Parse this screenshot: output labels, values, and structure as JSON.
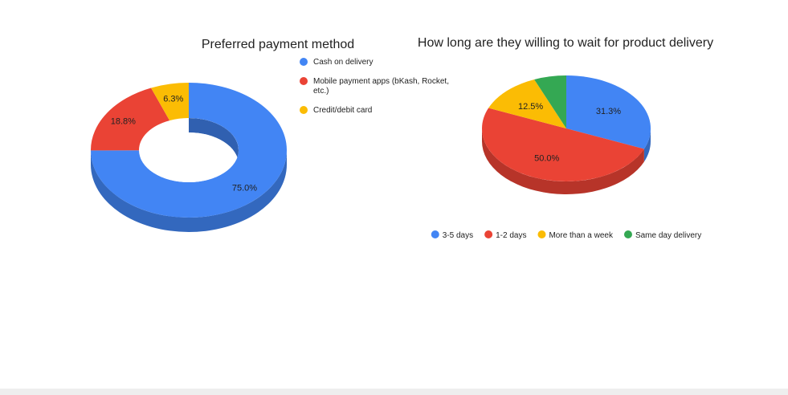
{
  "chart_data": [
    {
      "type": "pie",
      "variant": "donut-3d",
      "title": "Preferred payment method",
      "categories": [
        "Cash on delivery",
        "Mobile payment apps (bKash, Rocket, etc.)",
        "Credit/debit card"
      ],
      "legend_lines": [
        [
          "Cash on delivery"
        ],
        [
          "Mobile payment apps (bKash, Rocket,",
          "etc.)"
        ],
        [
          "Credit/debit card"
        ]
      ],
      "values": [
        75.0,
        18.8,
        6.3
      ],
      "data_labels": [
        "75.0%",
        "18.8%",
        "6.3%"
      ],
      "colors": [
        "#4285f4",
        "#ea4335",
        "#fbbc04"
      ],
      "legend_position": "right"
    },
    {
      "type": "pie",
      "variant": "pie-3d",
      "title": "How long are they willing to wait for product delivery",
      "categories": [
        "3-5 days",
        "1-2 days",
        "More than a week",
        "Same day delivery"
      ],
      "values": [
        31.3,
        50.0,
        12.5,
        6.2
      ],
      "data_labels": [
        "31.3%",
        "50.0%",
        "12.5%",
        ""
      ],
      "colors": [
        "#4285f4",
        "#ea4335",
        "#fbbc04",
        "#34a853"
      ],
      "legend_position": "bottom"
    }
  ]
}
